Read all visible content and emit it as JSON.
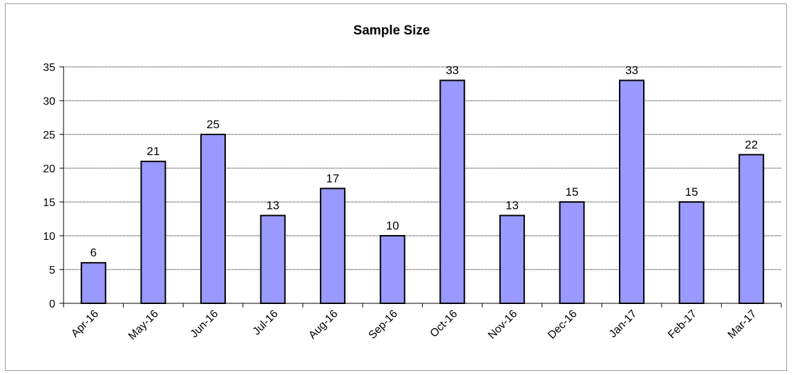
{
  "chart_data": {
    "type": "bar",
    "title": "Sample Size",
    "xlabel": "",
    "ylabel": "",
    "categories": [
      "Apr-16",
      "May-16",
      "Jun-16",
      "Jul-16",
      "Aug-16",
      "Sep-16",
      "Oct-16",
      "Nov-16",
      "Dec-16",
      "Jan-17",
      "Feb-17",
      "Mar-17"
    ],
    "values": [
      6,
      21,
      25,
      13,
      17,
      10,
      33,
      13,
      15,
      33,
      15,
      22
    ],
    "ylim": [
      0,
      35
    ],
    "yticks": [
      0,
      5,
      10,
      15,
      20,
      25,
      30,
      35
    ],
    "grid": true,
    "legend": "none",
    "data_labels": true,
    "colors": {
      "bar_fill": "#9999FF",
      "bar_stroke": "#000000",
      "grid": "#000000"
    }
  }
}
